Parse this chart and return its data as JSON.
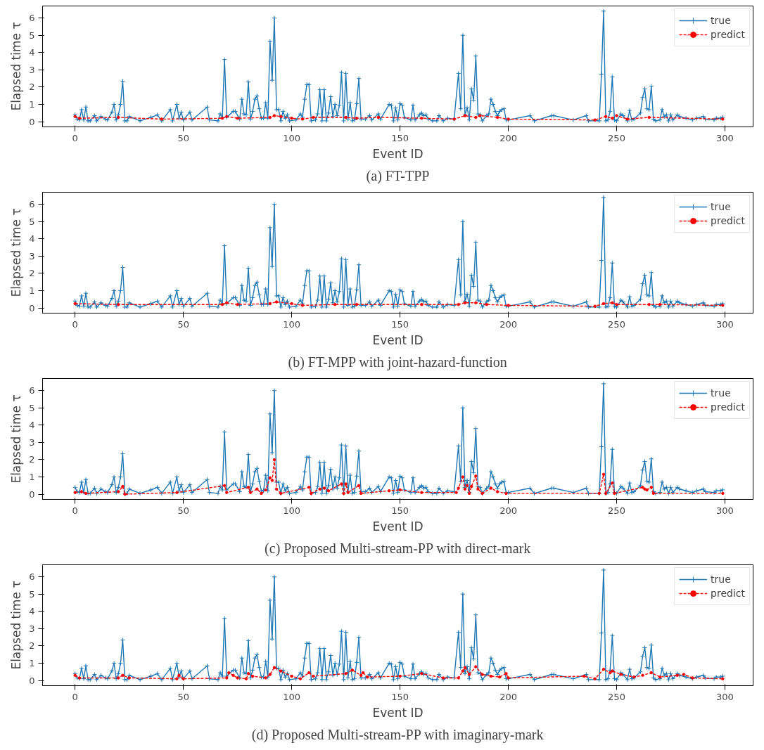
{
  "chart_data": [
    {
      "type": "line",
      "title": "(a) FT-TPP",
      "xlabel": "Event ID",
      "ylabel": "Elapsed time τ",
      "xlim": [
        -15,
        313
      ],
      "ylim": [
        -0.3,
        6.7
      ],
      "xticks": [
        0,
        50,
        100,
        150,
        200,
        250,
        300
      ],
      "yticks": [
        0,
        1,
        2,
        3,
        4,
        5,
        6
      ],
      "grid": false,
      "legend": "top right",
      "series": [
        {
          "name": "true",
          "color": "#1f77b4",
          "marker": "cross",
          "line_style": "solid",
          "x": [
            0,
            1,
            2,
            3,
            4,
            5,
            6,
            7,
            9,
            10,
            12,
            14,
            15,
            17,
            18,
            19,
            20,
            21,
            22,
            23,
            24,
            25,
            30,
            35,
            38,
            40,
            44,
            45,
            47,
            48,
            49,
            50,
            53,
            54,
            61,
            62,
            66,
            67,
            68,
            69,
            70,
            73,
            74,
            76,
            77,
            78,
            79,
            80,
            81,
            82,
            83,
            84,
            85,
            86,
            87,
            88,
            89,
            90,
            91,
            92,
            93,
            94,
            95,
            96,
            97,
            98,
            99,
            102,
            104,
            105,
            106,
            107,
            108,
            109,
            111,
            112,
            113,
            114,
            115,
            116,
            117,
            118,
            119,
            120,
            121,
            122,
            123,
            124,
            125,
            126,
            127,
            128,
            129,
            130,
            131,
            132,
            134,
            136,
            137,
            140,
            141,
            145,
            146,
            147,
            148,
            149,
            150,
            151,
            152,
            155,
            156,
            157,
            159,
            160,
            161,
            162,
            163,
            165,
            167,
            168,
            170,
            172,
            175,
            177,
            178,
            179,
            180,
            181,
            182,
            183,
            184,
            185,
            186,
            187,
            188,
            190,
            191,
            192,
            193,
            194,
            195,
            196,
            197,
            198,
            199,
            200,
            210,
            212,
            220,
            221,
            230,
            236,
            237,
            242,
            243,
            244,
            245,
            246,
            247,
            248,
            249,
            250,
            252,
            253,
            255,
            256,
            257,
            258,
            261,
            262,
            263,
            264,
            265,
            266,
            267,
            268,
            270,
            271,
            272,
            273,
            274,
            275,
            276,
            278,
            279,
            282,
            285,
            287,
            290,
            291,
            295,
            296,
            298,
            299
          ],
          "values": [
            0.4,
            0.15,
            0.1,
            0.7,
            0.1,
            0.85,
            0.05,
            0.05,
            0.35,
            0.05,
            0.3,
            0.15,
            0.1,
            0.55,
            1.0,
            0.1,
            0.4,
            1.0,
            2.35,
            0.05,
            0.05,
            0.3,
            0.05,
            0.25,
            0.4,
            0.05,
            0.7,
            0.05,
            1.0,
            0.2,
            0.55,
            0.1,
            0.55,
            0.1,
            0.85,
            0.1,
            0.05,
            0.45,
            0.25,
            3.6,
            0.25,
            0.6,
            0.6,
            0.15,
            1.3,
            0.45,
            0.4,
            2.3,
            0.15,
            0.6,
            1.3,
            1.5,
            0.75,
            0.2,
            0.2,
            1.1,
            0.2,
            4.65,
            2.4,
            6.0,
            0.7,
            0.7,
            0.05,
            0.6,
            0.2,
            0.4,
            0.05,
            0.1,
            0.45,
            0.25,
            1.3,
            2.15,
            2.15,
            0.05,
            0.1,
            0.45,
            1.85,
            0.05,
            1.85,
            0.05,
            0.5,
            1.45,
            0.3,
            1.0,
            0.35,
            0.95,
            2.85,
            0.05,
            2.8,
            0.15,
            1.1,
            0.05,
            0.1,
            1.05,
            2.5,
            0.15,
            0.15,
            0.35,
            0.1,
            0.45,
            0.15,
            1.0,
            0.95,
            0.05,
            0.8,
            0.1,
            1.05,
            0.95,
            0.25,
            0.1,
            0.95,
            0.1,
            0.4,
            0.5,
            0.35,
            0.4,
            0.15,
            0.05,
            0.05,
            0.35,
            0.05,
            0.2,
            0.15,
            2.8,
            0.75,
            5.0,
            0.4,
            0.8,
            0.1,
            1.9,
            1.25,
            3.8,
            0.45,
            0.4,
            0.05,
            0.35,
            0.45,
            1.3,
            1.0,
            0.6,
            0.35,
            0.6,
            0.7,
            0.75,
            0.1,
            0.1,
            0.35,
            0.05,
            0.35,
            0.35,
            0.1,
            0.35,
            0.05,
            0.05,
            2.75,
            6.4,
            0.05,
            0.1,
            0.6,
            2.6,
            0.1,
            0.05,
            0.45,
            0.35,
            0.05,
            0.65,
            0.1,
            0.15,
            0.5,
            1.4,
            1.9,
            0.75,
            0.7,
            2.05,
            0.15,
            0.05,
            0.1,
            0.7,
            0.3,
            0.4,
            0.05,
            0.4,
            0.1,
            0.4,
            0.3,
            0.2,
            0.1,
            0.2,
            0.3,
            0.15,
            0.1,
            0.2,
            0.2,
            0.25
          ]
        },
        {
          "name": "predict",
          "color": "#ff0000",
          "marker": "circle",
          "line_style": "dashed",
          "x": [
            0,
            2,
            20,
            40,
            68,
            70,
            75,
            90,
            92,
            95,
            100,
            105,
            110,
            125,
            130,
            140,
            160,
            175,
            180,
            185,
            187,
            195,
            200,
            240,
            245,
            248,
            250,
            255,
            265,
            299
          ],
          "values": [
            0.3,
            0.2,
            0.25,
            0.15,
            0.2,
            0.3,
            0.2,
            0.25,
            0.35,
            0.3,
            0.2,
            0.15,
            0.25,
            0.25,
            0.2,
            0.25,
            0.2,
            0.15,
            0.35,
            0.25,
            0.35,
            0.25,
            0.15,
            0.1,
            0.3,
            0.2,
            0.35,
            0.15,
            0.25,
            0.15
          ]
        }
      ]
    },
    {
      "type": "line",
      "title": "(b) FT-MPP with joint-hazard-function",
      "xlabel": "Event ID",
      "ylabel": "Elapsed time τ",
      "xlim": [
        -15,
        313
      ],
      "ylim": [
        -0.3,
        6.7
      ],
      "xticks": [
        0,
        50,
        100,
        150,
        200,
        250,
        300
      ],
      "yticks": [
        0,
        1,
        2,
        3,
        4,
        5,
        6
      ],
      "grid": false,
      "legend": "top right",
      "series": [
        {
          "name": "true",
          "color": "#1f77b4",
          "marker": "cross",
          "line_style": "solid",
          "x": [
            0,
            1,
            2,
            3,
            4,
            5,
            6,
            7,
            9,
            10,
            12,
            14,
            15,
            17,
            18,
            19,
            20,
            21,
            22,
            23,
            24,
            25,
            30,
            35,
            38,
            40,
            44,
            45,
            47,
            48,
            49,
            50,
            53,
            54,
            61,
            62,
            66,
            67,
            68,
            69,
            70,
            73,
            74,
            76,
            77,
            78,
            79,
            80,
            81,
            82,
            83,
            84,
            85,
            86,
            87,
            88,
            89,
            90,
            91,
            92,
            93,
            94,
            95,
            96,
            97,
            98,
            99,
            102,
            104,
            105,
            106,
            107,
            108,
            109,
            111,
            112,
            113,
            114,
            115,
            116,
            117,
            118,
            119,
            120,
            121,
            122,
            123,
            124,
            125,
            126,
            127,
            128,
            129,
            130,
            131,
            132,
            134,
            136,
            137,
            140,
            141,
            145,
            146,
            147,
            148,
            149,
            150,
            151,
            152,
            155,
            156,
            157,
            159,
            160,
            161,
            162,
            163,
            165,
            167,
            168,
            170,
            172,
            175,
            177,
            178,
            179,
            180,
            181,
            182,
            183,
            184,
            185,
            186,
            187,
            188,
            190,
            191,
            192,
            193,
            194,
            195,
            196,
            197,
            198,
            199,
            200,
            210,
            212,
            220,
            221,
            230,
            236,
            237,
            242,
            243,
            244,
            245,
            246,
            247,
            248,
            249,
            250,
            252,
            253,
            255,
            256,
            257,
            258,
            261,
            262,
            263,
            264,
            265,
            266,
            267,
            268,
            270,
            271,
            272,
            273,
            274,
            275,
            276,
            278,
            279,
            282,
            285,
            287,
            290,
            291,
            295,
            296,
            298,
            299
          ],
          "values": [
            0.4,
            0.15,
            0.1,
            0.7,
            0.1,
            0.85,
            0.05,
            0.05,
            0.35,
            0.05,
            0.3,
            0.15,
            0.1,
            0.55,
            1.0,
            0.1,
            0.4,
            1.0,
            2.35,
            0.05,
            0.05,
            0.3,
            0.05,
            0.25,
            0.4,
            0.05,
            0.7,
            0.05,
            1.0,
            0.2,
            0.55,
            0.1,
            0.55,
            0.1,
            0.85,
            0.1,
            0.05,
            0.45,
            0.25,
            3.6,
            0.25,
            0.6,
            0.6,
            0.15,
            1.3,
            0.45,
            0.4,
            2.3,
            0.15,
            0.6,
            1.3,
            1.5,
            0.75,
            0.2,
            0.2,
            1.1,
            0.2,
            4.65,
            2.4,
            6.0,
            0.7,
            0.7,
            0.05,
            0.6,
            0.2,
            0.4,
            0.05,
            0.1,
            0.45,
            0.25,
            1.3,
            2.15,
            2.15,
            0.05,
            0.1,
            0.45,
            1.85,
            0.05,
            1.85,
            0.05,
            0.5,
            1.45,
            0.3,
            1.0,
            0.35,
            0.95,
            2.85,
            0.05,
            2.8,
            0.15,
            1.1,
            0.05,
            0.1,
            1.05,
            2.5,
            0.15,
            0.15,
            0.35,
            0.1,
            0.45,
            0.15,
            1.0,
            0.95,
            0.05,
            0.8,
            0.1,
            1.05,
            0.95,
            0.25,
            0.1,
            0.95,
            0.1,
            0.4,
            0.5,
            0.35,
            0.4,
            0.15,
            0.05,
            0.05,
            0.35,
            0.05,
            0.2,
            0.15,
            2.8,
            0.75,
            5.0,
            0.4,
            0.8,
            0.1,
            1.9,
            1.25,
            3.8,
            0.45,
            0.4,
            0.05,
            0.35,
            0.45,
            1.3,
            1.0,
            0.6,
            0.35,
            0.6,
            0.7,
            0.75,
            0.1,
            0.1,
            0.35,
            0.05,
            0.35,
            0.35,
            0.1,
            0.35,
            0.05,
            0.05,
            2.75,
            6.4,
            0.05,
            0.1,
            0.6,
            2.6,
            0.1,
            0.05,
            0.45,
            0.35,
            0.05,
            0.65,
            0.1,
            0.15,
            0.5,
            1.4,
            1.9,
            0.75,
            0.7,
            2.05,
            0.15,
            0.05,
            0.1,
            0.7,
            0.3,
            0.4,
            0.05,
            0.4,
            0.1,
            0.4,
            0.3,
            0.2,
            0.1,
            0.2,
            0.3,
            0.15,
            0.1,
            0.2,
            0.2,
            0.25
          ]
        },
        {
          "name": "predict",
          "color": "#ff0000",
          "marker": "circle",
          "line_style": "dashed",
          "x": [
            0,
            20,
            68,
            70,
            75,
            90,
            93,
            100,
            105,
            120,
            130,
            160,
            177,
            180,
            185,
            190,
            200,
            240,
            244,
            248,
            250,
            265,
            270,
            299
          ],
          "values": [
            0.25,
            0.2,
            0.2,
            0.3,
            0.2,
            0.25,
            0.35,
            0.25,
            0.15,
            0.2,
            0.2,
            0.2,
            0.2,
            0.3,
            0.3,
            0.2,
            0.15,
            0.1,
            0.25,
            0.3,
            0.2,
            0.2,
            0.2,
            0.15
          ]
        }
      ]
    },
    {
      "type": "line",
      "title": "(c) Proposed Multi-stream-PP with direct-mark",
      "xlabel": "Event ID",
      "ylabel": "Elapsed time τ",
      "xlim": [
        -15,
        313
      ],
      "ylim": [
        -0.3,
        6.7
      ],
      "xticks": [
        0,
        50,
        100,
        150,
        200,
        250,
        300
      ],
      "yticks": [
        0,
        1,
        2,
        3,
        4,
        5,
        6
      ],
      "grid": false,
      "legend": "top right",
      "series": [
        {
          "name": "true",
          "color": "#1f77b4",
          "marker": "cross",
          "line_style": "solid",
          "x": [
            0,
            1,
            2,
            3,
            4,
            5,
            6,
            7,
            9,
            10,
            12,
            14,
            15,
            17,
            18,
            19,
            20,
            21,
            22,
            23,
            24,
            25,
            30,
            35,
            38,
            40,
            44,
            45,
            47,
            48,
            49,
            50,
            53,
            54,
            61,
            62,
            66,
            67,
            68,
            69,
            70,
            73,
            74,
            76,
            77,
            78,
            79,
            80,
            81,
            82,
            83,
            84,
            85,
            86,
            87,
            88,
            89,
            90,
            91,
            92,
            93,
            94,
            95,
            96,
            97,
            98,
            99,
            102,
            104,
            105,
            106,
            107,
            108,
            109,
            111,
            112,
            113,
            114,
            115,
            116,
            117,
            118,
            119,
            120,
            121,
            122,
            123,
            124,
            125,
            126,
            127,
            128,
            129,
            130,
            131,
            132,
            134,
            136,
            137,
            140,
            141,
            145,
            146,
            147,
            148,
            149,
            150,
            151,
            152,
            155,
            156,
            157,
            159,
            160,
            161,
            162,
            163,
            165,
            167,
            168,
            170,
            172,
            175,
            177,
            178,
            179,
            180,
            181,
            182,
            183,
            184,
            185,
            186,
            187,
            188,
            190,
            191,
            192,
            193,
            194,
            195,
            196,
            197,
            198,
            199,
            200,
            210,
            212,
            220,
            221,
            230,
            236,
            237,
            242,
            243,
            244,
            245,
            246,
            247,
            248,
            249,
            250,
            252,
            253,
            255,
            256,
            257,
            258,
            261,
            262,
            263,
            264,
            265,
            266,
            267,
            268,
            270,
            271,
            272,
            273,
            274,
            275,
            276,
            278,
            279,
            282,
            285,
            287,
            290,
            291,
            295,
            296,
            298,
            299
          ],
          "values": [
            0.4,
            0.15,
            0.1,
            0.7,
            0.1,
            0.85,
            0.05,
            0.05,
            0.35,
            0.05,
            0.3,
            0.15,
            0.1,
            0.55,
            1.0,
            0.1,
            0.4,
            1.0,
            2.35,
            0.05,
            0.05,
            0.3,
            0.05,
            0.25,
            0.4,
            0.05,
            0.7,
            0.05,
            1.0,
            0.2,
            0.55,
            0.1,
            0.55,
            0.1,
            0.85,
            0.1,
            0.05,
            0.45,
            0.25,
            3.6,
            0.25,
            0.6,
            0.6,
            0.15,
            1.3,
            0.45,
            0.4,
            2.3,
            0.15,
            0.6,
            1.3,
            1.5,
            0.75,
            0.2,
            0.2,
            1.1,
            0.2,
            4.65,
            2.4,
            6.0,
            0.7,
            0.7,
            0.05,
            0.6,
            0.2,
            0.4,
            0.05,
            0.1,
            0.45,
            0.25,
            1.3,
            2.15,
            2.15,
            0.05,
            0.1,
            0.45,
            1.85,
            0.05,
            1.85,
            0.05,
            0.5,
            1.45,
            0.3,
            1.0,
            0.35,
            0.95,
            2.85,
            0.05,
            2.8,
            0.15,
            1.1,
            0.05,
            0.1,
            1.05,
            2.5,
            0.15,
            0.15,
            0.35,
            0.1,
            0.45,
            0.15,
            1.0,
            0.95,
            0.05,
            0.8,
            0.1,
            1.05,
            0.95,
            0.25,
            0.1,
            0.95,
            0.1,
            0.4,
            0.5,
            0.35,
            0.4,
            0.15,
            0.05,
            0.05,
            0.35,
            0.05,
            0.2,
            0.15,
            2.8,
            0.75,
            5.0,
            0.4,
            0.8,
            0.1,
            1.9,
            1.25,
            3.8,
            0.45,
            0.4,
            0.05,
            0.35,
            0.45,
            1.3,
            1.0,
            0.6,
            0.35,
            0.6,
            0.7,
            0.75,
            0.1,
            0.1,
            0.35,
            0.05,
            0.35,
            0.35,
            0.1,
            0.35,
            0.05,
            0.05,
            2.75,
            6.4,
            0.05,
            0.1,
            0.6,
            2.6,
            0.1,
            0.05,
            0.45,
            0.35,
            0.05,
            0.65,
            0.1,
            0.15,
            0.5,
            1.4,
            1.9,
            0.75,
            0.7,
            2.05,
            0.15,
            0.05,
            0.1,
            0.7,
            0.3,
            0.4,
            0.05,
            0.4,
            0.1,
            0.4,
            0.3,
            0.2,
            0.1,
            0.2,
            0.3,
            0.15,
            0.1,
            0.2,
            0.2,
            0.25
          ]
        },
        {
          "name": "predict",
          "color": "#ff0000",
          "marker": "circle",
          "line_style": "dashed",
          "x": [
            0,
            3,
            5,
            20,
            22,
            23,
            47,
            69,
            70,
            80,
            81,
            84,
            86,
            88,
            90,
            91,
            92,
            93,
            95,
            108,
            109,
            113,
            115,
            117,
            123,
            124,
            125,
            126,
            131,
            132,
            145,
            150,
            160,
            176,
            177,
            179,
            180,
            181,
            182,
            183,
            185,
            186,
            188,
            192,
            195,
            199,
            242,
            244,
            245,
            248,
            249,
            262,
            263,
            264,
            266,
            267,
            299
          ],
          "values": [
            0.1,
            0.15,
            0.05,
            0.15,
            0.45,
            0.0,
            0.1,
            0.5,
            0.1,
            0.4,
            0.1,
            0.3,
            0.05,
            0.25,
            0.95,
            0.8,
            2.0,
            0.3,
            0.05,
            0.4,
            0.05,
            0.3,
            0.35,
            0.2,
            0.6,
            0.05,
            0.6,
            0.1,
            0.5,
            0.05,
            0.2,
            0.25,
            0.1,
            0.1,
            0.35,
            1.0,
            0.3,
            0.5,
            0.05,
            0.45,
            1.05,
            0.3,
            0.05,
            0.35,
            0.15,
            0.05,
            0.05,
            1.15,
            0.05,
            0.65,
            0.05,
            0.4,
            0.3,
            0.25,
            0.4,
            0.05,
            0.05
          ]
        }
      ]
    },
    {
      "type": "line",
      "title": "(d) Proposed Multi-stream-PP with imaginary-mark",
      "xlabel": "Event ID",
      "ylabel": "Elapsed time τ",
      "xlim": [
        -15,
        313
      ],
      "ylim": [
        -0.3,
        6.7
      ],
      "xticks": [
        0,
        50,
        100,
        150,
        200,
        250,
        300
      ],
      "yticks": [
        0,
        1,
        2,
        3,
        4,
        5,
        6
      ],
      "grid": false,
      "legend": "top right",
      "series": [
        {
          "name": "true",
          "color": "#1f77b4",
          "marker": "cross",
          "line_style": "solid",
          "x": [
            0,
            1,
            2,
            3,
            4,
            5,
            6,
            7,
            9,
            10,
            12,
            14,
            15,
            17,
            18,
            19,
            20,
            21,
            22,
            23,
            24,
            25,
            30,
            35,
            38,
            40,
            44,
            45,
            47,
            48,
            49,
            50,
            53,
            54,
            61,
            62,
            66,
            67,
            68,
            69,
            70,
            73,
            74,
            76,
            77,
            78,
            79,
            80,
            81,
            82,
            83,
            84,
            85,
            86,
            87,
            88,
            89,
            90,
            91,
            92,
            93,
            94,
            95,
            96,
            97,
            98,
            99,
            102,
            104,
            105,
            106,
            107,
            108,
            109,
            111,
            112,
            113,
            114,
            115,
            116,
            117,
            118,
            119,
            120,
            121,
            122,
            123,
            124,
            125,
            126,
            127,
            128,
            129,
            130,
            131,
            132,
            134,
            136,
            137,
            140,
            141,
            145,
            146,
            147,
            148,
            149,
            150,
            151,
            152,
            155,
            156,
            157,
            159,
            160,
            161,
            162,
            163,
            165,
            167,
            168,
            170,
            172,
            175,
            177,
            178,
            179,
            180,
            181,
            182,
            183,
            184,
            185,
            186,
            187,
            188,
            190,
            191,
            192,
            193,
            194,
            195,
            196,
            197,
            198,
            199,
            200,
            210,
            212,
            220,
            221,
            230,
            236,
            237,
            242,
            243,
            244,
            245,
            246,
            247,
            248,
            249,
            250,
            252,
            253,
            255,
            256,
            257,
            258,
            261,
            262,
            263,
            264,
            265,
            266,
            267,
            268,
            270,
            271,
            272,
            273,
            274,
            275,
            276,
            278,
            279,
            282,
            285,
            287,
            290,
            291,
            295,
            296,
            298,
            299
          ],
          "values": [
            0.4,
            0.15,
            0.1,
            0.7,
            0.1,
            0.85,
            0.05,
            0.05,
            0.35,
            0.05,
            0.3,
            0.15,
            0.1,
            0.55,
            1.0,
            0.1,
            0.4,
            1.0,
            2.35,
            0.05,
            0.05,
            0.3,
            0.05,
            0.25,
            0.4,
            0.05,
            0.7,
            0.05,
            1.0,
            0.2,
            0.55,
            0.1,
            0.55,
            0.1,
            0.85,
            0.1,
            0.05,
            0.45,
            0.25,
            3.6,
            0.25,
            0.6,
            0.6,
            0.15,
            1.3,
            0.45,
            0.4,
            2.3,
            0.15,
            0.6,
            1.3,
            1.5,
            0.75,
            0.2,
            0.2,
            1.1,
            0.2,
            4.65,
            2.4,
            6.0,
            0.7,
            0.7,
            0.05,
            0.6,
            0.2,
            0.4,
            0.05,
            0.1,
            0.45,
            0.25,
            1.3,
            2.15,
            2.15,
            0.05,
            0.1,
            0.45,
            1.85,
            0.05,
            1.85,
            0.05,
            0.5,
            1.45,
            0.3,
            1.0,
            0.35,
            0.95,
            2.85,
            0.05,
            2.8,
            0.15,
            1.1,
            0.05,
            0.1,
            1.05,
            2.5,
            0.15,
            0.15,
            0.35,
            0.1,
            0.45,
            0.15,
            1.0,
            0.95,
            0.05,
            0.8,
            0.1,
            1.05,
            0.95,
            0.25,
            0.1,
            0.95,
            0.1,
            0.4,
            0.5,
            0.35,
            0.4,
            0.15,
            0.05,
            0.05,
            0.35,
            0.05,
            0.2,
            0.15,
            2.8,
            0.75,
            5.0,
            0.4,
            0.8,
            0.1,
            1.9,
            1.25,
            3.8,
            0.45,
            0.4,
            0.05,
            0.35,
            0.45,
            1.3,
            1.0,
            0.6,
            0.35,
            0.6,
            0.7,
            0.75,
            0.1,
            0.1,
            0.35,
            0.05,
            0.35,
            0.35,
            0.1,
            0.35,
            0.05,
            0.05,
            2.75,
            6.4,
            0.05,
            0.1,
            0.6,
            2.6,
            0.1,
            0.05,
            0.45,
            0.35,
            0.05,
            0.65,
            0.1,
            0.15,
            0.5,
            1.4,
            1.9,
            0.75,
            0.7,
            2.05,
            0.15,
            0.05,
            0.1,
            0.7,
            0.3,
            0.4,
            0.05,
            0.4,
            0.1,
            0.4,
            0.3,
            0.2,
            0.1,
            0.2,
            0.3,
            0.15,
            0.1,
            0.2,
            0.2,
            0.25
          ]
        },
        {
          "name": "predict",
          "color": "#ff0000",
          "marker": "circle",
          "line_style": "dashed",
          "x": [
            0,
            2,
            20,
            22,
            25,
            47,
            48,
            50,
            70,
            71,
            73,
            75,
            79,
            80,
            82,
            88,
            90,
            92,
            95,
            100,
            104,
            108,
            110,
            125,
            128,
            132,
            133,
            135,
            150,
            160,
            170,
            177,
            179,
            180,
            182,
            185,
            188,
            192,
            196,
            199,
            200,
            235,
            240,
            244,
            247,
            248,
            252,
            258,
            262,
            266,
            270,
            278,
            281,
            285,
            299
          ],
          "values": [
            0.3,
            0.15,
            0.15,
            0.3,
            0.15,
            0.1,
            0.3,
            0.1,
            0.15,
            0.45,
            0.3,
            0.15,
            0.1,
            0.4,
            0.25,
            0.15,
            0.35,
            0.75,
            0.55,
            0.25,
            0.1,
            0.45,
            0.25,
            0.4,
            0.6,
            0.3,
            0.45,
            0.2,
            0.25,
            0.4,
            0.15,
            0.15,
            0.55,
            0.75,
            0.35,
            0.8,
            0.35,
            0.25,
            0.2,
            0.4,
            0.15,
            0.25,
            0.1,
            0.65,
            0.45,
            0.55,
            0.35,
            0.2,
            0.3,
            0.45,
            0.2,
            0.3,
            0.35,
            0.15,
            0.1
          ]
        }
      ]
    }
  ]
}
